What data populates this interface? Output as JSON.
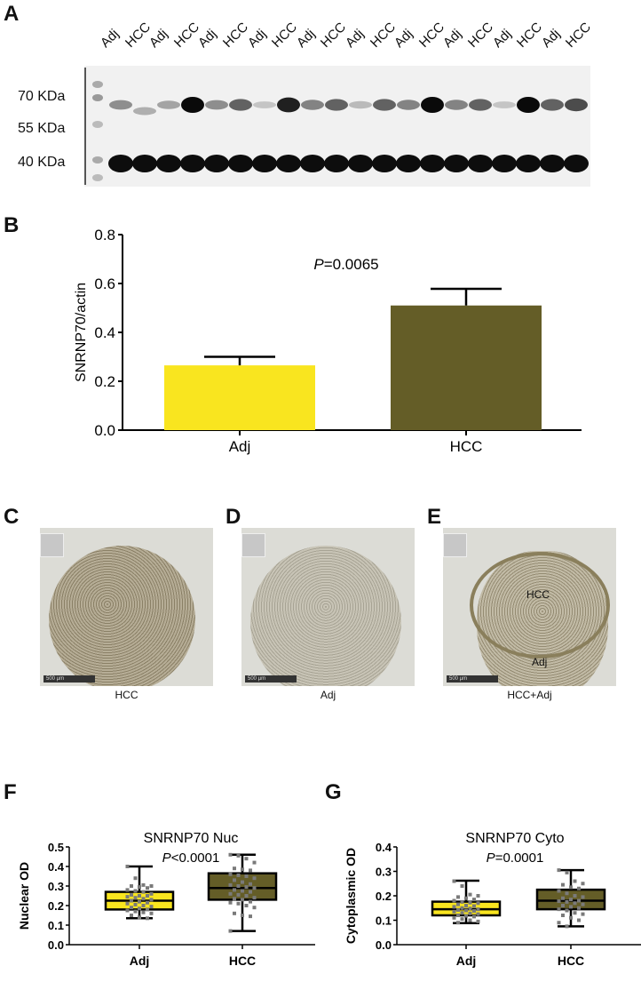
{
  "panels": {
    "a": "A",
    "b": "B",
    "c": "C",
    "d": "D",
    "e": "E",
    "f": "F",
    "g": "G"
  },
  "blot": {
    "lanes": [
      "Adj",
      "HCC",
      "Adj",
      "HCC",
      "Adj",
      "HCC",
      "Adj",
      "HCC",
      "Adj",
      "HCC",
      "Adj",
      "HCC",
      "Adj",
      "HCC",
      "Adj",
      "HCC",
      "Adj",
      "HCC",
      "Adj",
      "HCC"
    ],
    "markers": [
      "70 KDa",
      "55 KDa",
      "40 KDa"
    ],
    "snrnp70_band_intensity": [
      0.4,
      0.25,
      0.3,
      1,
      0.4,
      0.6,
      0.15,
      0.9,
      0.45,
      0.6,
      0.2,
      0.6,
      0.45,
      1,
      0.45,
      0.6,
      0.15,
      1,
      0.6,
      0.7
    ]
  },
  "ihc": {
    "captions": [
      "HCC",
      "Adj",
      "HCC+Adj"
    ],
    "region_labels": [
      "HCC",
      "Adj"
    ],
    "scale_bar": "500 µm"
  },
  "colors": {
    "adj": "#f9e51f",
    "hcc": "#645d27",
    "region_outline": "#8a7f5c"
  },
  "chart_data": [
    {
      "type": "bar",
      "panel": "B",
      "categories": [
        "Adj",
        "HCC"
      ],
      "values": [
        0.265,
        0.51
      ],
      "error_upper": [
        0.3,
        0.578
      ],
      "ylabel": "SNRNP70/actin",
      "ylim": [
        0,
        0.8
      ],
      "yticks": [
        "0.0",
        "0.2",
        "0.4",
        "0.6",
        "0.8"
      ],
      "annotation": {
        "p_label": "P",
        "p_value": "=0.0065"
      },
      "grid": false
    },
    {
      "type": "box",
      "panel": "F",
      "title": "SNRNP70 Nuc",
      "ylabel": "Nuclear OD",
      "ylim": [
        0,
        0.5
      ],
      "yticks": [
        "0.0",
        "0.1",
        "0.2",
        "0.3",
        "0.4",
        "0.5"
      ],
      "categories": [
        "Adj",
        "HCC"
      ],
      "annotation": {
        "p_label": "P",
        "p_value": "<0.0001"
      },
      "boxes": [
        {
          "min": 0.135,
          "q1": 0.18,
          "median": 0.225,
          "q3": 0.27,
          "max": 0.4,
          "points": [
            0.4,
            0.34,
            0.305,
            0.3,
            0.3,
            0.295,
            0.29,
            0.28,
            0.275,
            0.27,
            0.26,
            0.255,
            0.25,
            0.25,
            0.245,
            0.24,
            0.235,
            0.23,
            0.225,
            0.22,
            0.215,
            0.21,
            0.205,
            0.2,
            0.195,
            0.19,
            0.185,
            0.18,
            0.175,
            0.17,
            0.165,
            0.16,
            0.15,
            0.14,
            0.135
          ]
        },
        {
          "min": 0.07,
          "q1": 0.23,
          "median": 0.29,
          "q3": 0.365,
          "max": 0.46,
          "points": [
            0.46,
            0.455,
            0.44,
            0.42,
            0.39,
            0.385,
            0.38,
            0.36,
            0.355,
            0.35,
            0.34,
            0.33,
            0.32,
            0.31,
            0.305,
            0.3,
            0.295,
            0.29,
            0.28,
            0.275,
            0.27,
            0.26,
            0.255,
            0.25,
            0.24,
            0.235,
            0.23,
            0.22,
            0.215,
            0.21,
            0.2,
            0.19,
            0.16,
            0.15,
            0.145,
            0.07
          ]
        }
      ]
    },
    {
      "type": "box",
      "panel": "G",
      "title": "SNRNP70 Cyto",
      "ylabel": "Cytoplasmic OD",
      "ylim": [
        0,
        0.4
      ],
      "yticks": [
        "0.0",
        "0.1",
        "0.2",
        "0.3",
        "0.4"
      ],
      "categories": [
        "Adj",
        "HCC"
      ],
      "annotation": {
        "p_label": "P",
        "p_value": "=0.0001"
      },
      "boxes": [
        {
          "min": 0.088,
          "q1": 0.12,
          "median": 0.145,
          "q3": 0.176,
          "max": 0.262,
          "points": [
            0.26,
            0.24,
            0.205,
            0.2,
            0.195,
            0.19,
            0.185,
            0.18,
            0.175,
            0.172,
            0.17,
            0.165,
            0.16,
            0.158,
            0.155,
            0.15,
            0.148,
            0.145,
            0.142,
            0.14,
            0.138,
            0.135,
            0.13,
            0.128,
            0.125,
            0.12,
            0.118,
            0.115,
            0.11,
            0.105,
            0.1,
            0.095,
            0.09
          ]
        },
        {
          "min": 0.075,
          "q1": 0.145,
          "median": 0.18,
          "q3": 0.225,
          "max": 0.305,
          "points": [
            0.305,
            0.295,
            0.26,
            0.25,
            0.245,
            0.235,
            0.23,
            0.22,
            0.21,
            0.2,
            0.195,
            0.19,
            0.185,
            0.18,
            0.178,
            0.175,
            0.17,
            0.165,
            0.16,
            0.155,
            0.15,
            0.145,
            0.14,
            0.13,
            0.125,
            0.12,
            0.11,
            0.1,
            0.09,
            0.075
          ]
        }
      ]
    }
  ]
}
